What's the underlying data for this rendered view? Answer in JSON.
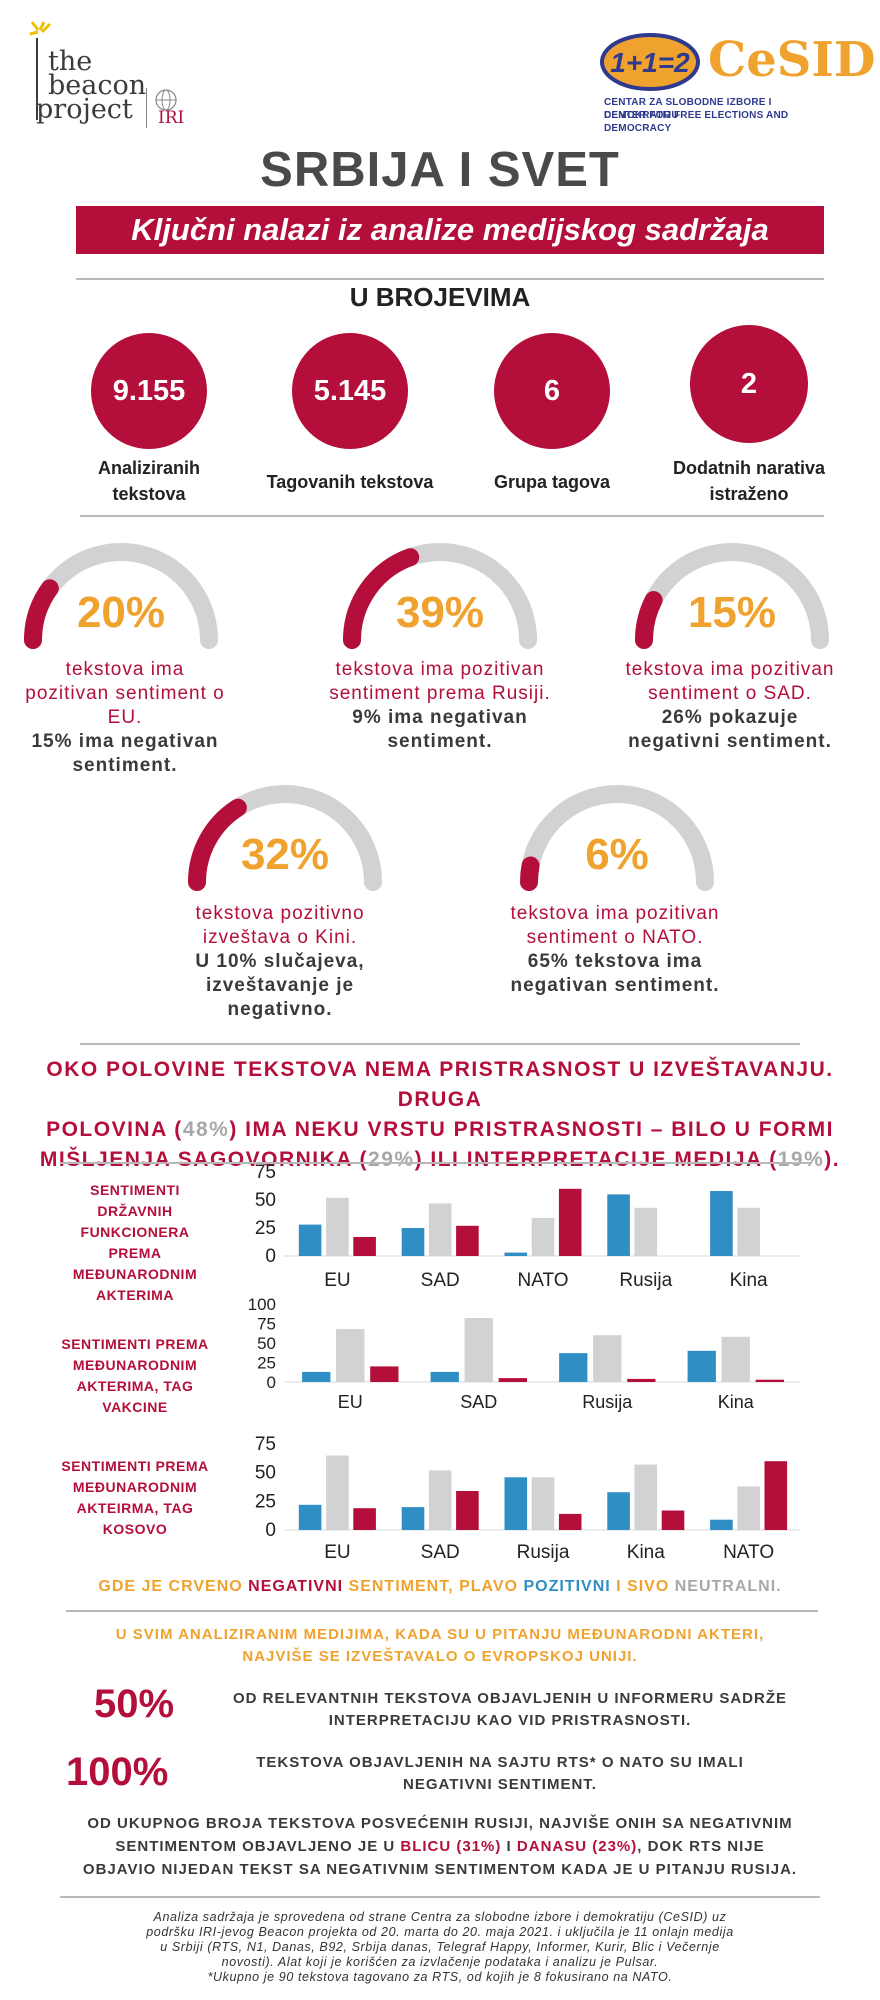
{
  "header": {
    "beacon_logo": [
      "the",
      "beacon",
      "project"
    ],
    "iri": "IRI",
    "cesid_equation": "1+1=2",
    "cesid_name": "CeSID",
    "cesid_sub1": "CENTAR ZA SLOBODNE IZBORE I DEMOKRATIJU",
    "cesid_sub2": "CENTER FOR FREE ELECTIONS AND DEMOCRACY"
  },
  "title": "SRBIJA I SVET",
  "banner": "Ključni nalazi iz analize medijskog sadržaja",
  "numbers": {
    "heading": "U BROJEVIMA",
    "items": [
      {
        "value": "9.155",
        "label_1": "Analiziranih",
        "label_2": "tekstova"
      },
      {
        "value": "5.145",
        "label_1": "Tagovanih tekstova",
        "label_2": ""
      },
      {
        "value": "6",
        "label_1": "Grupa tagova",
        "label_2": ""
      },
      {
        "value": "2",
        "label_1": "Dodatnih narativa",
        "label_2": "istraženo"
      }
    ]
  },
  "gauges": [
    {
      "pct_label": "20%",
      "value": 0.2,
      "l1": "tekstova ima",
      "l2": "pozitivan sentiment o",
      "l3": "EU.",
      "n1": "15% ima negativan",
      "n2": "sentiment.",
      "n3": ""
    },
    {
      "pct_label": "39%",
      "value": 0.39,
      "l1": "tekstova ima pozitivan",
      "l2": "sentiment prema Rusiji.",
      "l3": "",
      "n1": "9% ima negativan",
      "n2": "sentiment.",
      "n3": ""
    },
    {
      "pct_label": "15%",
      "value": 0.15,
      "l1": "tekstova ima pozitivan",
      "l2": "sentiment o SAD.",
      "l3": "",
      "n1": "26% pokazuje",
      "n2": "negativni sentiment.",
      "n3": ""
    },
    {
      "pct_label": "32%",
      "value": 0.32,
      "l1": "tekstova pozitivno",
      "l2": "izveštava o Kini.",
      "l3": "",
      "n1": "U 10% slučajeva,",
      "n2": "izveštavanje je",
      "n3": "negativno."
    },
    {
      "pct_label": "6%",
      "value": 0.06,
      "l1": "tekstova ima pozitivan",
      "l2": "sentiment o NATO.",
      "l3": "",
      "n1": "65% tekstova ima",
      "n2": "negativan sentiment.",
      "n3": ""
    }
  ],
  "bias": {
    "p1": "OKO POLOVINE TEKSTOVA NEMA PRISTRASNOST U IZVEŠTAVANJU. DRUGA",
    "p2": "POLOVINA (",
    "v1": "48%",
    "p3": ") IMA NEKU VRSTU PRISTRASNOSTI – BILO U FORMI",
    "p4": "MIŠLJENJA SAGOVORNIKA (",
    "v2": "29%",
    "p5": ") ILI INTERPRETACIJE MEDIJA (",
    "v3": "19%",
    "p6": ")."
  },
  "chart_data": [
    {
      "type": "bar",
      "title_lines": [
        "SENTIMENTI",
        "DRŽAVNIH",
        "FUNKCIONERA",
        "PREMA",
        "MEĐUNARODNIM",
        "AKTERIMA"
      ],
      "categories": [
        "EU",
        "SAD",
        "NATO",
        "Rusija",
        "Kina"
      ],
      "yticks": [
        "75",
        "50",
        "25",
        "0"
      ],
      "ylim": [
        0,
        75
      ],
      "series": [
        {
          "color": "#2f8fc4",
          "values": [
            28,
            25,
            3,
            55,
            58
          ]
        },
        {
          "color": "#d2d2d4",
          "values": [
            52,
            47,
            34,
            43,
            43
          ]
        },
        {
          "color": "#b30f3a",
          "values": [
            17,
            27,
            60,
            0,
            0
          ]
        }
      ]
    },
    {
      "type": "bar",
      "title_lines": [
        "SENTIMENTI PREMA",
        "MEĐUNARODNIM",
        "AKTERIMA, TAG",
        "VAKCINE"
      ],
      "categories": [
        "EU",
        "SAD",
        "Rusija",
        "Kina"
      ],
      "yticks": [
        "100",
        "75",
        "50",
        "25",
        "0"
      ],
      "ylim": [
        0,
        100
      ],
      "series": [
        {
          "color": "#2f8fc4",
          "values": [
            13,
            13,
            37,
            40
          ]
        },
        {
          "color": "#d2d2d4",
          "values": [
            68,
            82,
            60,
            58
          ]
        },
        {
          "color": "#b30f3a",
          "values": [
            20,
            5,
            4,
            3
          ]
        }
      ]
    },
    {
      "type": "bar",
      "title_lines": [
        "SENTIMENTI PREMA",
        "MEĐUNARODNIM",
        "AKTEIRMA, TAG",
        "KOSOVO"
      ],
      "categories": [
        "EU",
        "SAD",
        "Rusija",
        "Kina",
        "NATO"
      ],
      "yticks": [
        "75",
        "50",
        "25",
        "0"
      ],
      "ylim": [
        0,
        75
      ],
      "series": [
        {
          "color": "#2f8fc4",
          "values": [
            22,
            20,
            46,
            33,
            9
          ]
        },
        {
          "color": "#d2d2d4",
          "values": [
            65,
            52,
            46,
            57,
            38
          ]
        },
        {
          "color": "#b30f3a",
          "values": [
            19,
            34,
            14,
            17,
            60
          ]
        }
      ]
    }
  ],
  "legend": {
    "t1": "GDE JE CRVENO ",
    "t2": "NEGATIVNI",
    "t3": " SENTIMENT, PLAVO ",
    "t4": "POZITIVNI",
    "t5": " I SIVO ",
    "t6": "NEUTRALNI."
  },
  "stats": {
    "intro_1": "U SVIM ANALIZIRANIM MEDIJIMA, KADA SU U PITANJU MEĐUNARODNI AKTERI,",
    "intro_2": "NAJVIŠE SE IZVEŠTAVALO O EVROPSKOJ UNIJI.",
    "s1_value": "50%",
    "s1_l1": "OD RELEVANTNIH TEKSTOVA OBJAVLJENIH U INFORMERU SADRŽE",
    "s1_l2": "INTERPRETACIJU KAO VID PRISTRASNOSTI.",
    "s2_value": "100%",
    "s2_l1": "TEKSTOVA OBJAVLJENIH NA SAJTU RTS* O NATO SU IMALI",
    "s2_l2": "NEGATIVNI SENTIMENT."
  },
  "russia": {
    "l1": "OD UKUPNOG BROJA TEKSTOVA POSVEĆENIH RUSIJI, NAJVIŠE ONIH SA NEGATIVNIM",
    "l2a": "SENTIMENTOM OBJAVLJENO JE U ",
    "l2b": "BLICU (31%)",
    "l2c": " I ",
    "l2d": "DANASU (23%)",
    "l2e": ", DOK RTS NIJE",
    "l3": "OBJAVIO NIJEDAN TEKST SA NEGATIVNIM SENTIMENTOM KADA JE U PITANJU RUSIJA."
  },
  "footer": {
    "l1": "Analiza sadržaja je sprovedena od strane Centra za slobodne izbore i demokratiju (CeSID) uz",
    "l2": "podršku IRI-jevog Beacon projekta od 20. marta do 20. maja 2021. i uključila je 11 onlajn medija",
    "l3": "u Srbiji (RTS, N1, Danas, B92, Srbija danas, Telegraf Happy, Informer, Kurir, Blic i Večernje",
    "l4": "novosti). Alat koji je korišćen za izvlačenje podataka i analizu je Pulsar.",
    "l5": "*Ukupno je 90 tekstova tagovano za RTS, od kojih je 8 fokusirano na NATO."
  }
}
